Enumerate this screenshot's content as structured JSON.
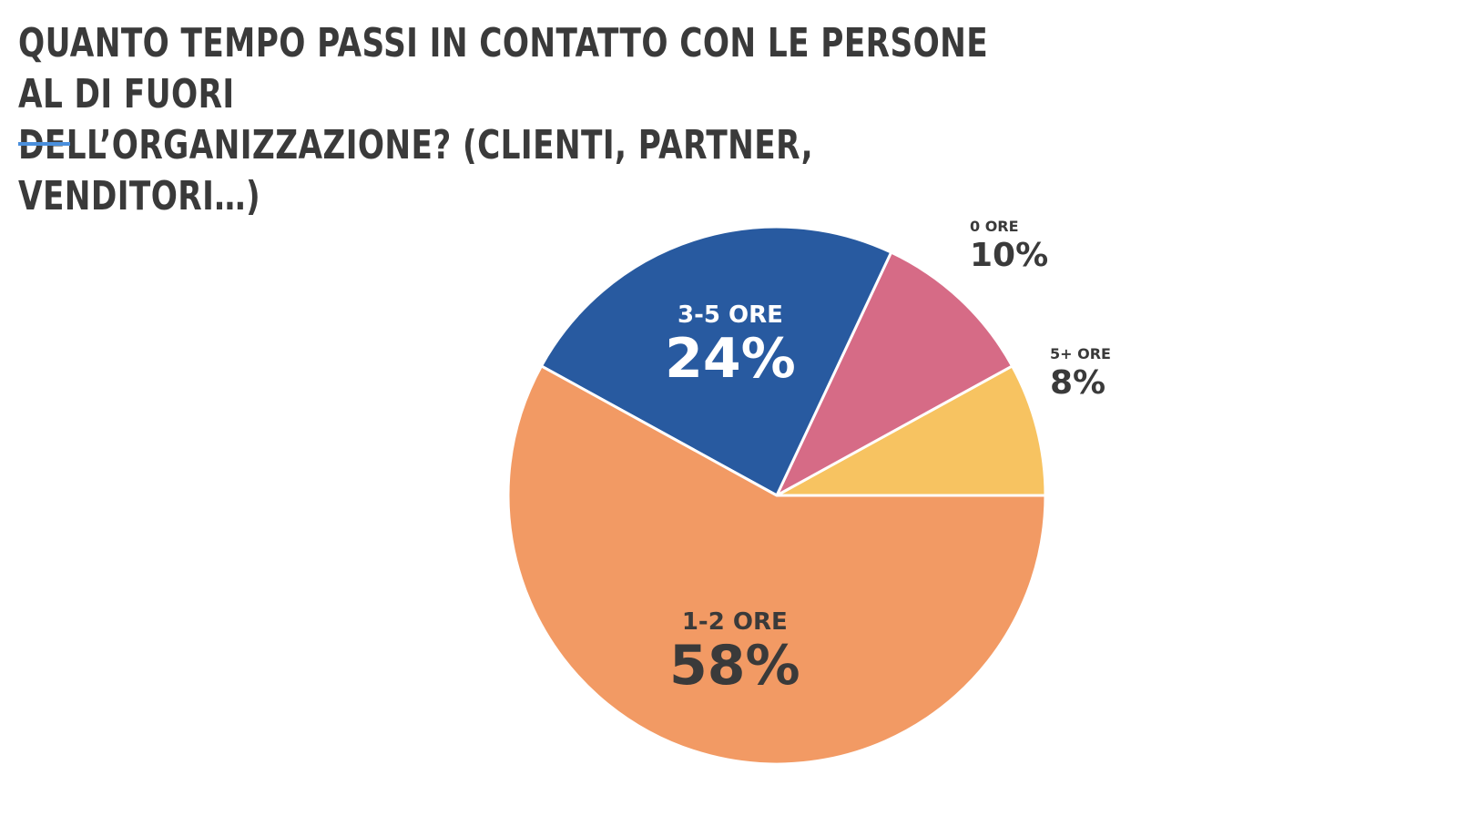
{
  "header": {
    "title_line1": "QUANTO TEMPO PASSI IN CONTATTO CON LE PERSONE AL DI FUORI",
    "title_line2": "DELL’ORGANIZZAZIONE? (CLIENTI, PARTNER, VENDITORI…)"
  },
  "colors": {
    "accent": "#4a8fdc",
    "text": "#3a3a3a"
  },
  "chart_data": {
    "type": "pie",
    "start_angle_deg": 0,
    "direction": "counterclockwise",
    "slices": [
      {
        "label": "5+ ORE",
        "value": 8,
        "display": "8%",
        "color": "#f7c361",
        "label_color": "#3a3a3a",
        "label_position": "outside"
      },
      {
        "label": "0 ORE",
        "value": 10,
        "display": "10%",
        "color": "#d66b86",
        "label_color": "#3a3a3a",
        "label_position": "outside"
      },
      {
        "label": "3-5 ORE",
        "value": 24,
        "display": "24%",
        "color": "#285aa0",
        "label_color": "#ffffff",
        "label_position": "inside"
      },
      {
        "label": "1-2 ORE",
        "value": 58,
        "display": "58%",
        "color": "#f29a64",
        "label_color": "#3a3a3a",
        "label_position": "inside"
      }
    ]
  }
}
